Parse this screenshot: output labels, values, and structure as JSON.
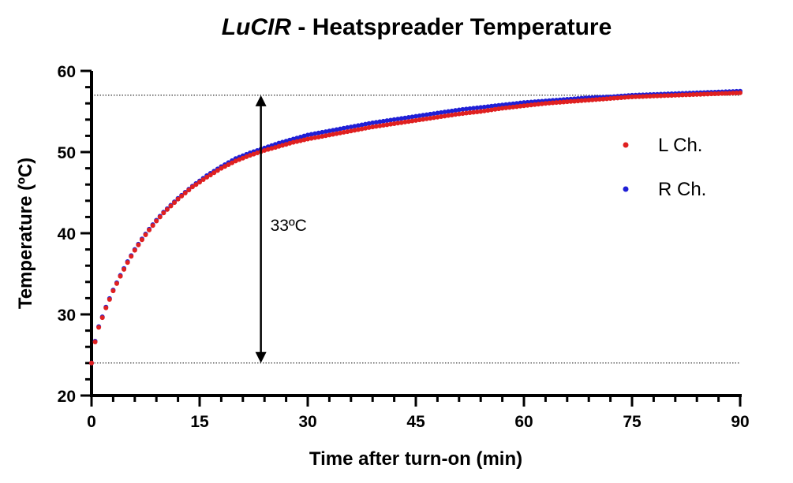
{
  "chart_data": {
    "type": "scatter",
    "title_italic": "LuCIR",
    "title_rest": " - Heatspreader Temperature",
    "xlabel": "Time after turn-on (min)",
    "ylabel": "Temperature (ºC)",
    "xlim": [
      0,
      90
    ],
    "ylim": [
      20,
      60
    ],
    "xticks": [
      "0",
      "15",
      "30",
      "45",
      "60",
      "75",
      "90"
    ],
    "yticks": [
      "20",
      "30",
      "40",
      "50",
      "60"
    ],
    "x_minor_step": 3,
    "y_minor_step": 2,
    "legend_position": "right",
    "series": [
      {
        "name": "R Ch.",
        "color": "#1f1fd6",
        "x": [
          0,
          0.5,
          1,
          2,
          3,
          4,
          5,
          6,
          7,
          8,
          9,
          10,
          12,
          14,
          16,
          18,
          20,
          22,
          24,
          26,
          28,
          30,
          33,
          36,
          39,
          42,
          45,
          48,
          51,
          54,
          57,
          60,
          63,
          66,
          69,
          72,
          75,
          78,
          81,
          84,
          87,
          90
        ],
        "values": [
          24.0,
          26.7,
          28.5,
          30.9,
          33.0,
          34.8,
          36.5,
          38.0,
          39.3,
          40.5,
          41.6,
          42.6,
          44.3,
          45.8,
          47.1,
          48.2,
          49.2,
          49.9,
          50.5,
          51.1,
          51.6,
          52.1,
          52.6,
          53.1,
          53.6,
          54.0,
          54.4,
          54.8,
          55.2,
          55.5,
          55.8,
          56.1,
          56.3,
          56.5,
          56.7,
          56.8,
          57.0,
          57.1,
          57.2,
          57.3,
          57.4,
          57.5
        ]
      },
      {
        "name": "L Ch.",
        "color": "#e02020",
        "x": [
          0,
          0.5,
          1,
          2,
          3,
          4,
          5,
          6,
          7,
          8,
          9,
          10,
          12,
          14,
          16,
          18,
          20,
          22,
          24,
          26,
          28,
          30,
          33,
          36,
          39,
          42,
          45,
          48,
          51,
          54,
          57,
          60,
          63,
          66,
          69,
          72,
          75,
          78,
          81,
          84,
          87,
          90
        ],
        "values": [
          24.0,
          26.6,
          28.4,
          30.8,
          32.9,
          34.7,
          36.4,
          37.9,
          39.2,
          40.4,
          41.5,
          42.5,
          44.2,
          45.7,
          46.9,
          48.0,
          48.9,
          49.6,
          50.2,
          50.7,
          51.2,
          51.6,
          52.1,
          52.6,
          53.1,
          53.5,
          53.9,
          54.3,
          54.7,
          55.0,
          55.4,
          55.7,
          56.0,
          56.2,
          56.4,
          56.6,
          56.8,
          56.9,
          57.0,
          57.1,
          57.2,
          57.3
        ]
      }
    ],
    "reference_lines": [
      57,
      24
    ],
    "annotation": {
      "label": "33ºC",
      "x": 23.5,
      "y_from": 24,
      "y_to": 57
    }
  }
}
